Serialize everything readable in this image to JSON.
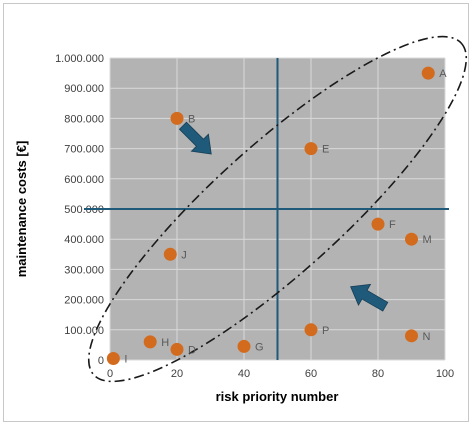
{
  "chart_data": {
    "type": "scatter",
    "title": "",
    "xlabel": "risk priority number",
    "ylabel": "maintenance costs [€]",
    "xlim": [
      0,
      100
    ],
    "ylim": [
      0,
      1000000
    ],
    "x_ticks": [
      "0",
      "20",
      "40",
      "60",
      "80",
      "100"
    ],
    "y_ticks": [
      "0",
      "100.000",
      "200.000",
      "300.000",
      "400.000",
      "500.000",
      "600.000",
      "700.000",
      "800.000",
      "900.000",
      "1.000.000"
    ],
    "grid": true,
    "legend": "none",
    "marker_color": "#d26b1e",
    "plot_background": "#b3b3b3",
    "quadrant_line_color": "#1f5a7a",
    "arrow_color": "#1f5a7a",
    "quadrant_lines": {
      "x": 50,
      "y": 500000
    },
    "points": [
      {
        "label": "A",
        "x": 95,
        "y": 950000
      },
      {
        "label": "B",
        "x": 20,
        "y": 800000
      },
      {
        "label": "E",
        "x": 60,
        "y": 700000
      },
      {
        "label": "F",
        "x": 80,
        "y": 450000
      },
      {
        "label": "M",
        "x": 90,
        "y": 400000
      },
      {
        "label": "J",
        "x": 18,
        "y": 350000
      },
      {
        "label": "P",
        "x": 60,
        "y": 100000
      },
      {
        "label": "N",
        "x": 90,
        "y": 80000
      },
      {
        "label": "H",
        "x": 12,
        "y": 60000
      },
      {
        "label": "D",
        "x": 20,
        "y": 35000
      },
      {
        "label": "G",
        "x": 40,
        "y": 45000
      },
      {
        "label": "I",
        "x": 1,
        "y": 5000
      }
    ]
  }
}
